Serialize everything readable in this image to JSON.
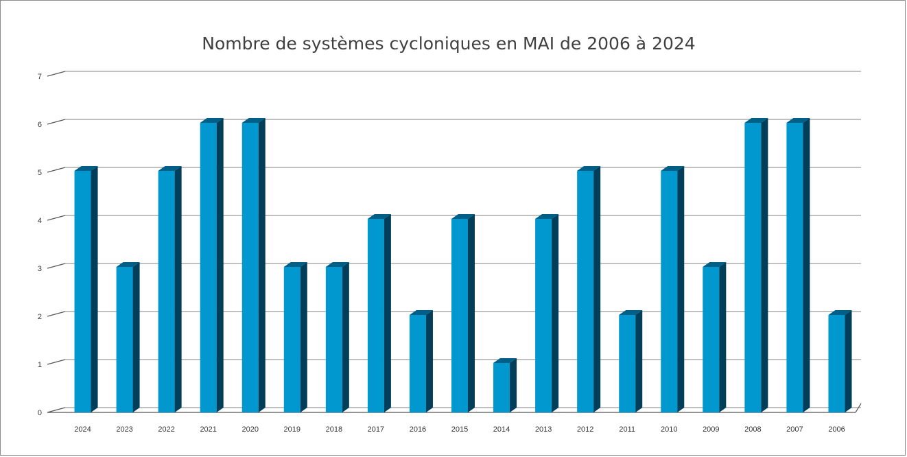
{
  "chart_data": {
    "type": "bar",
    "title": "Nombre de systèmes cycloniques en MAI de 2006 à 2024",
    "xlabel": "",
    "ylabel": "",
    "categories": [
      "2024",
      "2023",
      "2022",
      "2021",
      "2020",
      "2019",
      "2018",
      "2017",
      "2016",
      "2015",
      "2014",
      "2013",
      "2012",
      "2011",
      "2010",
      "2009",
      "2008",
      "2007",
      "2006"
    ],
    "values": [
      5,
      3,
      5,
      6,
      6,
      3,
      3,
      4,
      2,
      4,
      1,
      4,
      5,
      2,
      5,
      3,
      6,
      6,
      2
    ],
    "ylim": [
      0,
      7
    ],
    "yticks": [
      0,
      1,
      2,
      3,
      4,
      5,
      6,
      7
    ],
    "grid": true,
    "legend": "none",
    "style": "3d-column"
  },
  "colors": {
    "bar_front": "#0098CF",
    "bar_side": "#003E5A",
    "bar_top": "#005F86",
    "grid": "#9a9a9a",
    "axis": "#555555",
    "title": "#404040",
    "frame": "#8a8a8a"
  }
}
